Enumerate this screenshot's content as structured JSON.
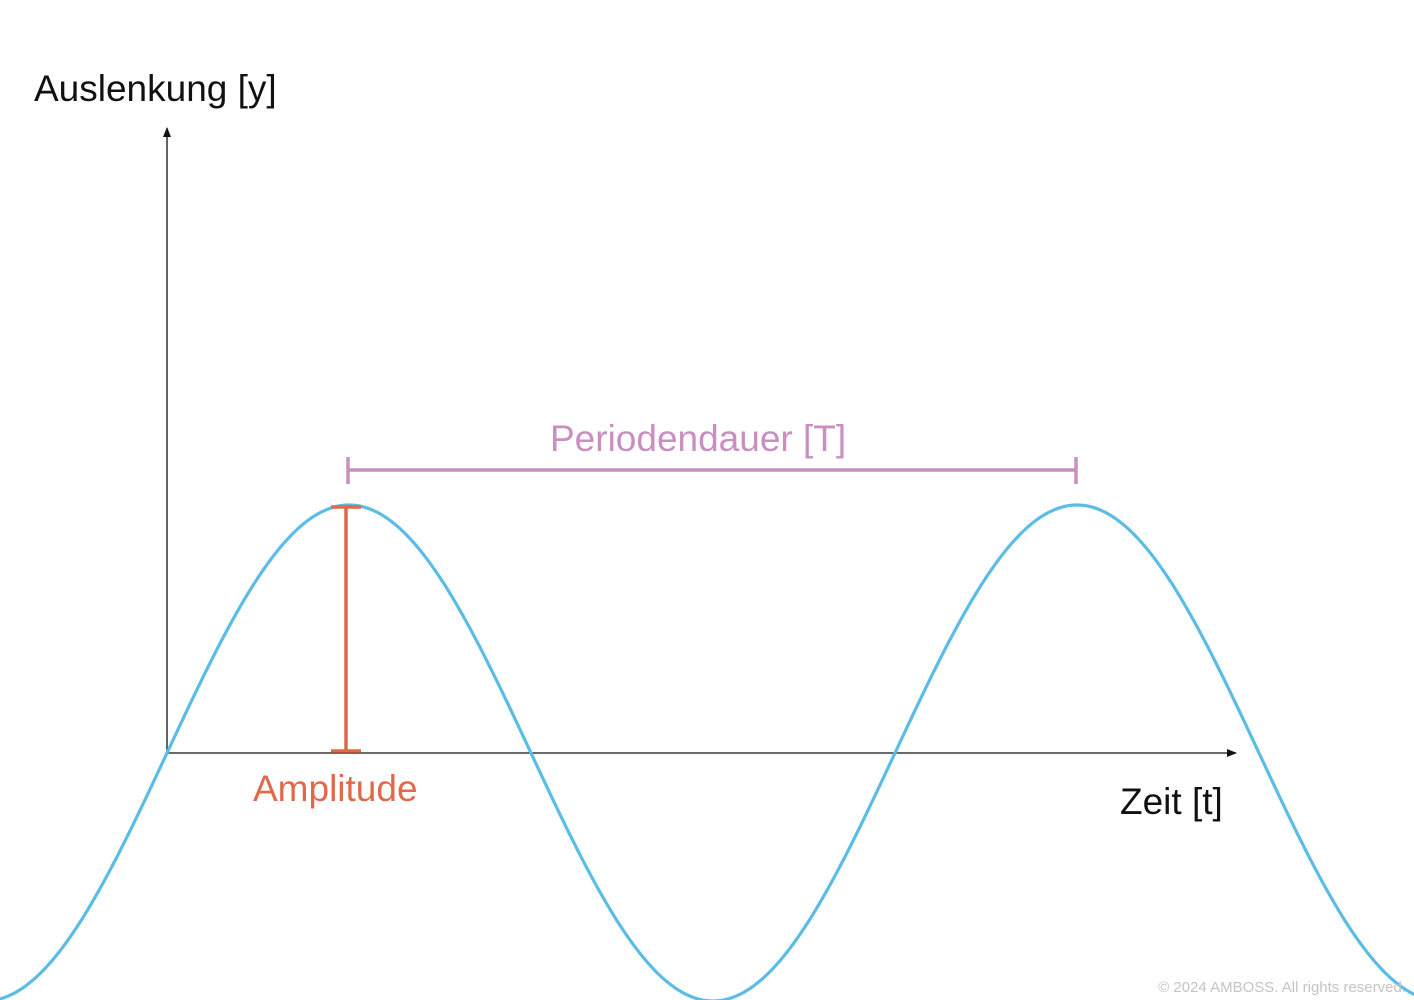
{
  "axes": {
    "y_label": "Auslenkung [y]",
    "x_label": "Zeit [t]"
  },
  "annotations": {
    "period_label": "Periodendauer [T]",
    "amplitude_label": "Amplitude"
  },
  "copyright": "© 2024 AMBOSS. All rights reserved.",
  "colors": {
    "text": "#111111",
    "axis": "#111111",
    "wave": "#5bbde6",
    "period": "#c98fc0",
    "amplitude": "#e0694a",
    "copyright": "#c4c4c4"
  },
  "chart_data": {
    "type": "line",
    "title": "",
    "xlabel": "Zeit [t]",
    "ylabel": "Auslenkung [y]",
    "function": "sine",
    "amplitude": 1,
    "period": 1
  }
}
